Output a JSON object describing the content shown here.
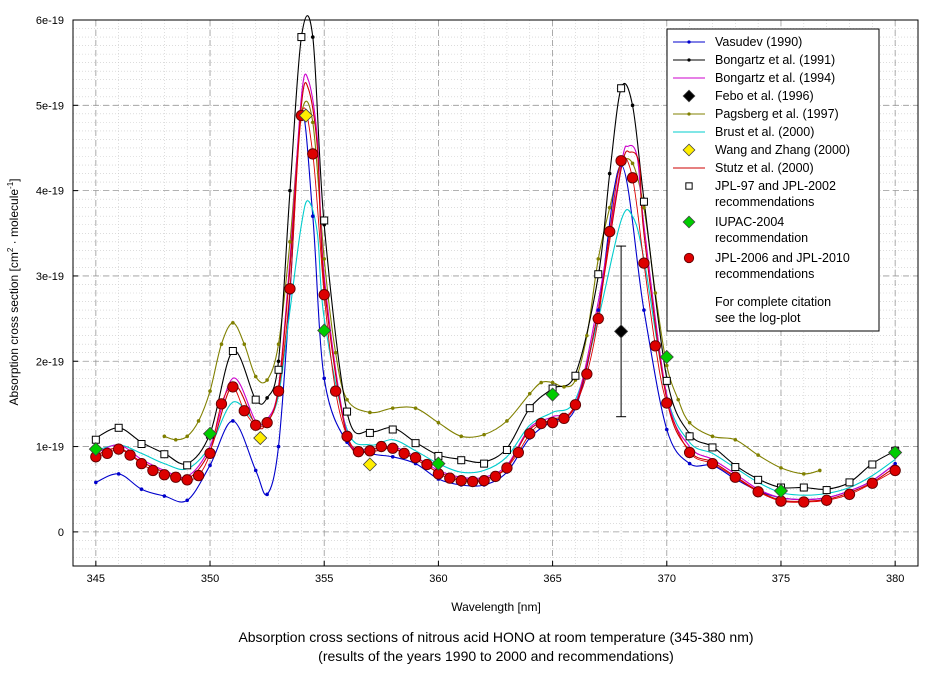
{
  "chart_data": {
    "type": "line",
    "title": "Absorption cross sections of nitrous acid HONO at room temperature (345-380 nm)",
    "subtitle": "(results of the years 1990 to 2000 and recommendations)",
    "xlabel": "Wavelength [nm]",
    "ylabel": {
      "main": "Absorption cross section [cm",
      "sup1": "2",
      "mid": " · molecule",
      "sup2": "-1",
      "end": "]"
    },
    "xlim": [
      344,
      381
    ],
    "ylim": [
      -4e-20,
      6e-19
    ],
    "x_ticks": [
      345,
      350,
      355,
      360,
      365,
      370,
      375,
      380
    ],
    "y_ticks": [
      0,
      1e-19,
      2e-19,
      3e-19,
      4e-19,
      5e-19,
      6e-19
    ],
    "y_tick_labels": [
      "0",
      "1e-19",
      "2e-19",
      "3e-19",
      "4e-19",
      "5e-19",
      "6e-19"
    ],
    "grid": true,
    "legend_position": "top-right",
    "legend_note": [
      "For complete citation",
      "see the log-plot"
    ],
    "series": [
      {
        "name": "Vasudev (1990)",
        "color": "#0000cc",
        "marker": "dot",
        "x": [
          345,
          346,
          347,
          348,
          349,
          350,
          351,
          352,
          352.5,
          353,
          353.5,
          354,
          354.5,
          355,
          356,
          357,
          358,
          359,
          360,
          361,
          362,
          363,
          364,
          365,
          366,
          367,
          368,
          369,
          370,
          371,
          372,
          373,
          374,
          375,
          376,
          377,
          378,
          379,
          380
        ],
        "y": [
          5.8e-20,
          6.8e-20,
          5e-20,
          4.2e-20,
          3.7e-20,
          7.8e-20,
          1.3e-19,
          7.2e-20,
          4.4e-20,
          1e-19,
          2.8e-19,
          4.9e-19,
          3.7e-19,
          1.8e-19,
          1.05e-19,
          9.2e-20,
          8.8e-20,
          8e-20,
          6.2e-20,
          5.5e-20,
          5.5e-20,
          7e-20,
          1.1e-19,
          1.3e-19,
          1.45e-19,
          2.6e-19,
          4.3e-19,
          2.6e-19,
          1.2e-19,
          8e-20,
          7.8e-20,
          6.2e-20,
          4.8e-20,
          4e-20,
          3.8e-20,
          4e-20,
          4.8e-20,
          6e-20,
          8e-20
        ]
      },
      {
        "name": "Bongartz et al. (1991)",
        "color": "#000000",
        "marker": "dot",
        "x": [
          345,
          346,
          347,
          348,
          349,
          350,
          351,
          352,
          352.5,
          353,
          353.5,
          354,
          354.5,
          355,
          356,
          357,
          358,
          359,
          360,
          361,
          362,
          363,
          364,
          365,
          366,
          367,
          367.5,
          368,
          368.5,
          369,
          370,
          371,
          372,
          373,
          374,
          375,
          376,
          377,
          378,
          379,
          380
        ],
        "y": [
          1.1e-19,
          1.22e-19,
          1.05e-19,
          9.2e-20,
          8e-20,
          1.15e-19,
          2.12e-19,
          1.55e-19,
          1.57e-19,
          2e-19,
          4e-19,
          5.8e-19,
          5.8e-19,
          3.6e-19,
          1.4e-19,
          1.18e-19,
          1.22e-19,
          1.05e-19,
          9e-20,
          8.5e-20,
          8.2e-20,
          9.8e-20,
          1.45e-19,
          1.68e-19,
          1.85e-19,
          3e-19,
          4.2e-19,
          5.2e-19,
          5e-19,
          3.9e-19,
          1.8e-19,
          1.15e-19,
          1e-19,
          7.8e-20,
          6.2e-20,
          5.2e-20,
          5.2e-20,
          5e-20,
          5.8e-20,
          8e-20,
          9.5e-20
        ]
      },
      {
        "name": "Bongartz et al. (1994)",
        "color": "#cc00cc",
        "marker": "none",
        "x": [
          345,
          346,
          347,
          348,
          349,
          350,
          351,
          352,
          352.5,
          353,
          353.5,
          354,
          354.3,
          354.7,
          355,
          356,
          357,
          358,
          359,
          360,
          361,
          362,
          363,
          364,
          365,
          366,
          367,
          368,
          368.3,
          368.7,
          369,
          370,
          371,
          372,
          373,
          374,
          375,
          376,
          377,
          378,
          379,
          380
        ],
        "y": [
          9.2e-20,
          1.02e-19,
          8.5e-20,
          7.2e-20,
          6.5e-20,
          1e-19,
          1.8e-19,
          1.3e-19,
          1.32e-19,
          1.7e-19,
          3.2e-19,
          5.1e-19,
          5.3e-19,
          4.6e-19,
          3e-19,
          1.15e-19,
          9.8e-20,
          1e-19,
          8.8e-20,
          7.2e-20,
          6.4e-20,
          6.4e-20,
          7.8e-20,
          1.22e-19,
          1.35e-19,
          1.5e-19,
          2.7e-19,
          4.3e-19,
          4.52e-19,
          4.4e-19,
          3.6e-19,
          1.6e-19,
          1e-19,
          8.5e-20,
          6.8e-20,
          5e-20,
          4e-20,
          3.8e-20,
          4e-20,
          4.8e-20,
          6e-20,
          8e-20
        ]
      },
      {
        "name": "Febo et al. (1996)",
        "color": "#000000",
        "marker": "diamond",
        "x": [
          368
        ],
        "y": [
          2.35e-19
        ],
        "error": [
          1e-19
        ]
      },
      {
        "name": "Pagsberg et al. (1997)",
        "color": "#808000",
        "marker": "dot",
        "x": [
          348,
          348.5,
          349,
          349.5,
          350,
          350.5,
          351,
          351.5,
          352,
          352.5,
          353,
          353.5,
          354,
          354.5,
          355,
          355.5,
          356,
          357,
          358,
          359,
          360,
          361,
          362,
          363,
          364,
          364.5,
          365,
          365.5,
          366,
          366.5,
          367,
          367.5,
          368,
          368.5,
          369,
          369.5,
          370,
          370.5,
          371,
          372,
          373,
          374,
          375,
          376,
          376.7
        ],
        "y": [
          1.12e-19,
          1.08e-19,
          1.12e-19,
          1.3e-19,
          1.65e-19,
          2.2e-19,
          2.45e-19,
          2.2e-19,
          1.82e-19,
          1.78e-19,
          2.2e-19,
          3.4e-19,
          4.9e-19,
          4.8e-19,
          3.2e-19,
          2.1e-19,
          1.55e-19,
          1.4e-19,
          1.45e-19,
          1.45e-19,
          1.28e-19,
          1.12e-19,
          1.14e-19,
          1.3e-19,
          1.62e-19,
          1.75e-19,
          1.75e-19,
          1.7e-19,
          1.78e-19,
          2.3e-19,
          3.2e-19,
          3.8e-19,
          4.3e-19,
          4.32e-19,
          3.8e-19,
          2.8e-19,
          1.95e-19,
          1.55e-19,
          1.28e-19,
          1.12e-19,
          1.08e-19,
          9e-20,
          7.5e-20,
          6.8e-20,
          7.2e-20
        ]
      },
      {
        "name": "Brust et al. (2000)",
        "color": "#00cccc",
        "marker": "none",
        "x": [
          345,
          346,
          347,
          348,
          349,
          350,
          351,
          352,
          352.5,
          353,
          353.5,
          354,
          354.3,
          354.7,
          355,
          356,
          357,
          358,
          359,
          360,
          361,
          362,
          363,
          364,
          365,
          366,
          367,
          368,
          368.5,
          369,
          370,
          371,
          372,
          373,
          374,
          375,
          376,
          377,
          378,
          379,
          380
        ],
        "y": [
          9.5e-20,
          1.02e-19,
          9.2e-20,
          8e-20,
          7.4e-20,
          1e-19,
          1.52e-19,
          1.28e-19,
          1.3e-19,
          1.6e-19,
          2.6e-19,
          3.6e-19,
          3.88e-19,
          3.5e-19,
          2.5e-19,
          1.2e-19,
          1.02e-19,
          1.08e-19,
          9.5e-20,
          8e-20,
          7e-20,
          7.2e-20,
          8.8e-20,
          1.25e-19,
          1.4e-19,
          1.55e-19,
          2.5e-19,
          3.65e-19,
          3.7e-19,
          3.2e-19,
          1.6e-19,
          1.05e-19,
          9.2e-20,
          7.5e-20,
          5.8e-20,
          4.6e-20,
          4.3e-20,
          4.5e-20,
          5.2e-20,
          6.6e-20,
          8.5e-20
        ]
      },
      {
        "name": "Wang and Zhang (2000)",
        "color": "#ffee00",
        "marker": "diamond",
        "x": [
          352.2,
          354.2,
          357
        ],
        "y": [
          1.1e-19,
          4.88e-19,
          7.9e-20
        ]
      },
      {
        "name": "Stutz et al. (2000)",
        "color": "#cc0000",
        "marker": "none",
        "x": [
          345,
          346,
          347,
          348,
          349,
          350,
          351,
          352,
          352.5,
          353,
          353.5,
          354,
          354.3,
          354.7,
          355,
          356,
          357,
          358,
          359,
          360,
          361,
          362,
          363,
          364,
          365,
          366,
          367,
          368,
          368.4,
          368.8,
          369,
          370,
          371,
          372,
          373,
          374,
          375,
          376,
          377,
          378,
          379,
          380
        ],
        "y": [
          9e-20,
          9.8e-20,
          8.2e-20,
          7e-20,
          6.2e-20,
          9.5e-20,
          1.72e-19,
          1.25e-19,
          1.28e-19,
          1.68e-19,
          3.1e-19,
          5e-19,
          5.2e-19,
          4.5e-19,
          2.9e-19,
          1.12e-19,
          9.5e-20,
          9.8e-20,
          8.5e-20,
          7e-20,
          6.2e-20,
          6.2e-20,
          7.6e-20,
          1.2e-19,
          1.32e-19,
          1.48e-19,
          2.6e-19,
          4.25e-19,
          4.45e-19,
          4.3e-19,
          3.5e-19,
          1.55e-19,
          9.5e-20,
          8.2e-20,
          6.5e-20,
          4.8e-20,
          3.7e-20,
          3.6e-20,
          3.8e-20,
          4.6e-20,
          5.8e-20,
          7.6e-20
        ]
      },
      {
        "name": "JPL-97 and JPL-2002 recommendations",
        "legend_lines": [
          "JPL-97 and JPL-2002",
          "recommendations"
        ],
        "color": "#000000",
        "marker": "square",
        "x": [
          345,
          346,
          347,
          348,
          349,
          350,
          351,
          352,
          353,
          354,
          355,
          356,
          357,
          358,
          359,
          360,
          361,
          362,
          363,
          364,
          365,
          366,
          367,
          368,
          369,
          370,
          371,
          372,
          373,
          374,
          375,
          376,
          377,
          378,
          379,
          380
        ],
        "y": [
          1.08e-19,
          1.22e-19,
          1.03e-19,
          9.1e-20,
          7.8e-20,
          1.14e-19,
          2.12e-19,
          1.55e-19,
          1.9e-19,
          5.8e-19,
          3.65e-19,
          1.41e-19,
          1.16e-19,
          1.2e-19,
          1.04e-19,
          8.9e-20,
          8.4e-20,
          8e-20,
          9.6e-20,
          1.45e-19,
          1.68e-19,
          1.83e-19,
          3.02e-19,
          5.2e-19,
          3.87e-19,
          1.77e-19,
          1.12e-19,
          9.9e-20,
          7.6e-20,
          6.1e-20,
          5.2e-20,
          5.2e-20,
          4.9e-20,
          5.8e-20,
          7.9e-20,
          9.5e-20
        ]
      },
      {
        "name": "IUPAC-2004 recommendation",
        "legend_lines": [
          "IUPAC-2004",
          "recommendation"
        ],
        "color": "#00cc00",
        "marker": "diamond",
        "x": [
          345,
          350,
          355,
          360,
          365,
          370,
          375,
          380
        ],
        "y": [
          9.7e-20,
          1.15e-19,
          2.36e-19,
          8e-20,
          1.61e-19,
          2.05e-19,
          4.8e-20,
          9.3e-20
        ]
      },
      {
        "name": "JPL-2006 and JPL-2010 recommendations",
        "legend_lines": [
          "JPL-2006 and JPL-2010",
          "recommendations"
        ],
        "color": "#dd0000",
        "marker": "circle",
        "x": [
          345,
          345.5,
          346,
          346.5,
          347,
          347.5,
          348,
          348.5,
          349,
          349.5,
          350,
          350.5,
          351,
          351.5,
          352,
          352.5,
          353,
          353.5,
          354,
          354.5,
          355,
          355.5,
          356,
          356.5,
          357,
          357.5,
          358,
          358.5,
          359,
          359.5,
          360,
          360.5,
          361,
          361.5,
          362,
          362.5,
          363,
          363.5,
          364,
          364.5,
          365,
          365.5,
          366,
          366.5,
          367,
          367.5,
          368,
          368.5,
          369,
          369.5,
          370,
          371,
          372,
          373,
          374,
          375,
          376,
          377,
          378,
          379,
          380
        ],
        "y": [
          8.8e-20,
          9.2e-20,
          9.7e-20,
          9e-20,
          8e-20,
          7.2e-20,
          6.7e-20,
          6.4e-20,
          6.1e-20,
          6.6e-20,
          9.2e-20,
          1.5e-19,
          1.7e-19,
          1.42e-19,
          1.25e-19,
          1.28e-19,
          1.65e-19,
          2.85e-19,
          4.88e-19,
          4.43e-19,
          2.78e-19,
          1.65e-19,
          1.12e-19,
          9.4e-20,
          9.5e-20,
          1e-19,
          9.8e-20,
          9.2e-20,
          8.7e-20,
          7.9e-20,
          6.8e-20,
          6.3e-20,
          6e-20,
          5.9e-20,
          6e-20,
          6.5e-20,
          7.5e-20,
          9.3e-20,
          1.15e-19,
          1.27e-19,
          1.28e-19,
          1.33e-19,
          1.49e-19,
          1.85e-19,
          2.5e-19,
          3.52e-19,
          4.35e-19,
          4.15e-19,
          3.15e-19,
          2.18e-19,
          1.51e-19,
          9.3e-20,
          8e-20,
          6.4e-20,
          4.7e-20,
          3.6e-20,
          3.5e-20,
          3.7e-20,
          4.4e-20,
          5.7e-20,
          7.2e-20
        ]
      }
    ]
  }
}
